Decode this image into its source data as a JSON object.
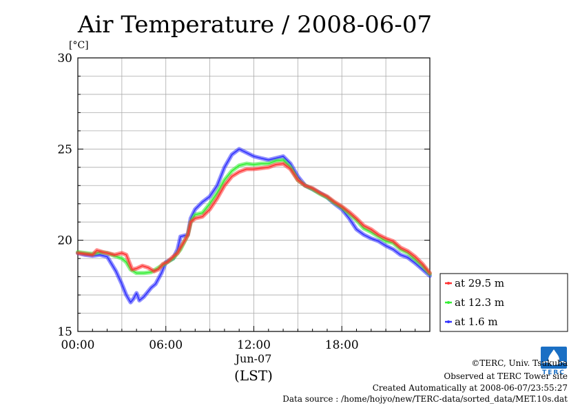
{
  "chart_data": {
    "type": "line",
    "title": "Air Temperature / 2008-06-07",
    "ylabel": "[°C]",
    "xlabel_date": "Jun-07",
    "xlabel_unit": "(LST)",
    "ylim": [
      15,
      30
    ],
    "xlim": [
      0,
      24
    ],
    "y_ticks": [
      "15",
      "20",
      "25",
      "30"
    ],
    "x_ticks": [
      "00:00",
      "06:00",
      "12:00",
      "18:00"
    ],
    "grid": true,
    "legend_position": "bottom-right outside",
    "series": [
      {
        "name": "at 29.5 m",
        "color": "#ff3333",
        "points": [
          [
            0,
            19.3
          ],
          [
            0.5,
            19.25
          ],
          [
            1,
            19.2
          ],
          [
            1.3,
            19.45
          ],
          [
            1.7,
            19.35
          ],
          [
            2,
            19.3
          ],
          [
            2.5,
            19.2
          ],
          [
            3,
            19.3
          ],
          [
            3.3,
            19.2
          ],
          [
            3.5,
            18.8
          ],
          [
            3.7,
            18.4
          ],
          [
            4,
            18.45
          ],
          [
            4.4,
            18.6
          ],
          [
            4.8,
            18.5
          ],
          [
            5.2,
            18.3
          ],
          [
            5.5,
            18.4
          ],
          [
            5.8,
            18.7
          ],
          [
            6.1,
            18.8
          ],
          [
            6.5,
            19.1
          ],
          [
            6.8,
            19.3
          ],
          [
            7,
            19.6
          ],
          [
            7.3,
            20
          ],
          [
            7.5,
            20.3
          ],
          [
            7.7,
            21
          ],
          [
            8,
            21.2
          ],
          [
            8.5,
            21.3
          ],
          [
            9,
            21.7
          ],
          [
            9.5,
            22.3
          ],
          [
            10,
            23
          ],
          [
            10.5,
            23.5
          ],
          [
            11,
            23.75
          ],
          [
            11.5,
            23.9
          ],
          [
            12,
            23.9
          ],
          [
            12.5,
            23.95
          ],
          [
            13,
            24
          ],
          [
            13.5,
            24.15
          ],
          [
            14,
            24.2
          ],
          [
            14.5,
            23.9
          ],
          [
            15,
            23.3
          ],
          [
            15.5,
            23
          ],
          [
            16,
            22.85
          ],
          [
            16.5,
            22.6
          ],
          [
            17,
            22.4
          ],
          [
            17.5,
            22.1
          ],
          [
            18,
            21.85
          ],
          [
            18.5,
            21.55
          ],
          [
            19,
            21.2
          ],
          [
            19.5,
            20.8
          ],
          [
            20,
            20.6
          ],
          [
            20.5,
            20.3
          ],
          [
            21,
            20.1
          ],
          [
            21.5,
            19.95
          ],
          [
            22,
            19.6
          ],
          [
            22.5,
            19.4
          ],
          [
            23,
            19.1
          ],
          [
            23.5,
            18.7
          ],
          [
            24,
            18.2
          ]
        ]
      },
      {
        "name": "at 12.3 m",
        "color": "#33ee33",
        "points": [
          [
            0,
            19.35
          ],
          [
            0.5,
            19.3
          ],
          [
            1,
            19.25
          ],
          [
            1.5,
            19.35
          ],
          [
            2,
            19.3
          ],
          [
            2.5,
            19.15
          ],
          [
            3,
            19.0
          ],
          [
            3.3,
            18.8
          ],
          [
            3.6,
            18.4
          ],
          [
            4,
            18.2
          ],
          [
            4.5,
            18.2
          ],
          [
            5,
            18.25
          ],
          [
            5.5,
            18.5
          ],
          [
            6,
            18.75
          ],
          [
            6.5,
            19.0
          ],
          [
            7,
            19.5
          ],
          [
            7.5,
            20.3
          ],
          [
            7.7,
            21
          ],
          [
            8,
            21.4
          ],
          [
            8.5,
            21.5
          ],
          [
            9,
            22.0
          ],
          [
            9.5,
            22.6
          ],
          [
            10,
            23.3
          ],
          [
            10.5,
            23.8
          ],
          [
            11,
            24.1
          ],
          [
            11.5,
            24.2
          ],
          [
            12,
            24.15
          ],
          [
            12.5,
            24.2
          ],
          [
            13,
            24.2
          ],
          [
            13.5,
            24.35
          ],
          [
            14,
            24.4
          ],
          [
            14.5,
            24.0
          ],
          [
            15,
            23.3
          ],
          [
            15.5,
            23.0
          ],
          [
            16,
            22.8
          ],
          [
            16.5,
            22.55
          ],
          [
            17,
            22.35
          ],
          [
            17.5,
            22.05
          ],
          [
            18,
            21.8
          ],
          [
            18.5,
            21.45
          ],
          [
            19,
            21.1
          ],
          [
            19.5,
            20.65
          ],
          [
            20,
            20.45
          ],
          [
            20.5,
            20.2
          ],
          [
            21,
            19.95
          ],
          [
            21.5,
            19.85
          ],
          [
            22,
            19.5
          ],
          [
            22.5,
            19.3
          ],
          [
            23,
            18.95
          ],
          [
            23.5,
            18.6
          ],
          [
            24,
            18.15
          ]
        ]
      },
      {
        "name": "at 1.6 m",
        "color": "#3333ff",
        "points": [
          [
            0,
            19.3
          ],
          [
            0.5,
            19.2
          ],
          [
            1,
            19.15
          ],
          [
            1.5,
            19.2
          ],
          [
            2,
            19.1
          ],
          [
            2.3,
            18.7
          ],
          [
            2.6,
            18.3
          ],
          [
            3,
            17.6
          ],
          [
            3.3,
            17.0
          ],
          [
            3.6,
            16.6
          ],
          [
            3.8,
            16.8
          ],
          [
            4,
            17.1
          ],
          [
            4.2,
            16.7
          ],
          [
            4.5,
            16.9
          ],
          [
            5,
            17.4
          ],
          [
            5.3,
            17.6
          ],
          [
            5.7,
            18.2
          ],
          [
            6,
            18.8
          ],
          [
            6.5,
            19.0
          ],
          [
            6.8,
            19.5
          ],
          [
            7,
            20.2
          ],
          [
            7.5,
            20.3
          ],
          [
            7.7,
            21.2
          ],
          [
            8,
            21.7
          ],
          [
            8.5,
            22.1
          ],
          [
            9,
            22.4
          ],
          [
            9.5,
            23.0
          ],
          [
            10,
            24.0
          ],
          [
            10.5,
            24.7
          ],
          [
            11,
            25.0
          ],
          [
            11.5,
            24.8
          ],
          [
            12,
            24.6
          ],
          [
            12.5,
            24.5
          ],
          [
            13,
            24.4
          ],
          [
            13.5,
            24.5
          ],
          [
            14,
            24.6
          ],
          [
            14.5,
            24.2
          ],
          [
            15,
            23.5
          ],
          [
            15.5,
            23.0
          ],
          [
            16,
            22.8
          ],
          [
            16.5,
            22.6
          ],
          [
            17,
            22.35
          ],
          [
            17.5,
            22.0
          ],
          [
            18,
            21.7
          ],
          [
            18.5,
            21.2
          ],
          [
            19,
            20.6
          ],
          [
            19.5,
            20.3
          ],
          [
            20,
            20.1
          ],
          [
            20.5,
            19.95
          ],
          [
            21,
            19.7
          ],
          [
            21.5,
            19.5
          ],
          [
            22,
            19.2
          ],
          [
            22.5,
            19.05
          ],
          [
            23,
            18.75
          ],
          [
            23.5,
            18.4
          ],
          [
            24,
            18.05
          ]
        ]
      }
    ]
  },
  "footer": {
    "copyright": "©TERC, Univ. Tsukuba",
    "observed": "Observed at TERC Tower site",
    "created": "Created Automatically at 2008-06-07/23:55:27",
    "source": "Data source : /home/hojyo/new/TERC-data/sorted_data/MET.10s.dat"
  },
  "logo": {
    "text": "TERC",
    "color": "#1a6fc4"
  }
}
